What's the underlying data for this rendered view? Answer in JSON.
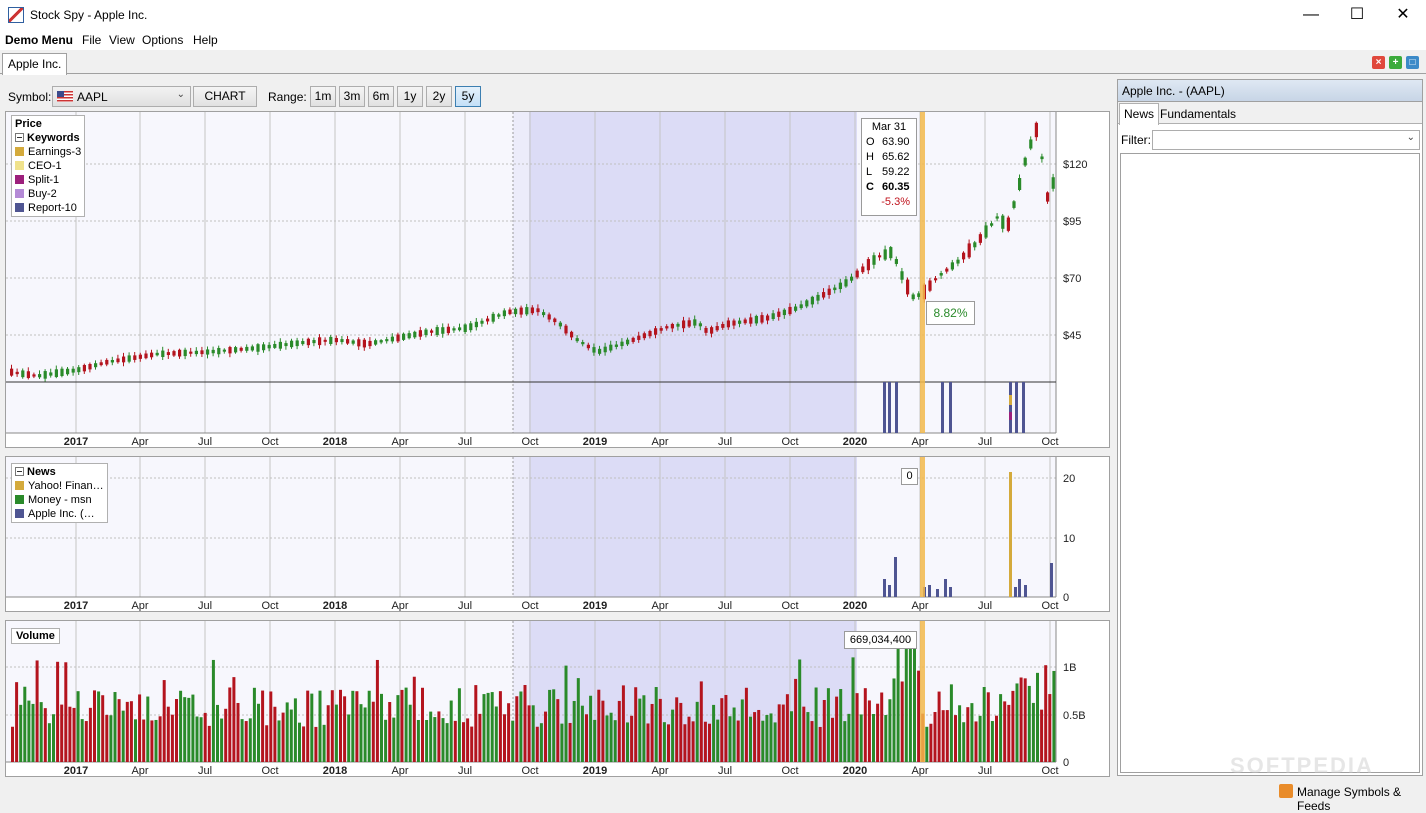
{
  "window": {
    "title": "Stock Spy - Apple Inc.",
    "minimize_glyph": "—",
    "maximize_glyph": "☐",
    "close_glyph": "✕"
  },
  "menu": [
    "Demo Menu",
    "File",
    "View",
    "Options",
    "Help"
  ],
  "doc_tab": "Apple Inc.",
  "toolbar": {
    "symbol_label": "Symbol:",
    "symbol_value": "AAPL",
    "chart_button": "CHART",
    "range_label": "Range:",
    "ranges": [
      "1m",
      "3m",
      "6m",
      "1y",
      "2y",
      "5y"
    ],
    "selected_range": "5y"
  },
  "price_panel": {
    "legend_title": "Price",
    "keywords_title": "Keywords",
    "keywords": [
      {
        "label": "Earnings-3",
        "color": "#d4aa3c"
      },
      {
        "label": "CEO-1",
        "color": "#f0e28c"
      },
      {
        "label": "Split-1",
        "color": "#9c1f7c"
      },
      {
        "label": "Buy-2",
        "color": "#b48ad6"
      },
      {
        "label": "Report-10",
        "color": "#4f5592"
      }
    ],
    "tooltip": {
      "date": "Mar 31",
      "open_label": "O",
      "open": "63.90",
      "high_label": "H",
      "high": "65.62",
      "low_label": "L",
      "low": "59.22",
      "close_label": "C",
      "close": "60.35",
      "change": "-5.3%"
    },
    "pct_badge": "8.82%",
    "y_ticks": [
      "$120",
      "$95",
      "$70",
      "$45"
    ]
  },
  "news_panel": {
    "legend_title": "News",
    "sources": [
      {
        "label": "Yahoo! Finan…",
        "color": "#d4aa3c"
      },
      {
        "label": "Money - msn",
        "color": "#2a8a2a"
      },
      {
        "label": "Apple Inc. (…",
        "color": "#4f5592"
      }
    ],
    "badge": "0",
    "y_ticks": [
      "20",
      "10",
      "0"
    ]
  },
  "volume_panel": {
    "legend_title": "Volume",
    "badge": "669,034,400",
    "y_ticks": [
      "1B",
      "0.5B",
      "0"
    ]
  },
  "x_axis": [
    "2017",
    "Apr",
    "Jul",
    "Oct",
    "2018",
    "Apr",
    "Jul",
    "Oct",
    "2019",
    "Apr",
    "Jul",
    "Oct",
    "2020",
    "Apr",
    "Jul",
    "Oct"
  ],
  "side": {
    "title": "Apple Inc. - (AAPL)",
    "tabs": [
      "News",
      "Fundamentals"
    ],
    "filter_label": "Filter:"
  },
  "status": {
    "manage": "Manage Symbols & Feeds"
  },
  "colors": {
    "up": "#2a8a2a",
    "down": "#b4141e",
    "highlight": "#dcdcf6",
    "marker": "#f2b84b"
  },
  "watermark": "SOFTPEDIA"
}
